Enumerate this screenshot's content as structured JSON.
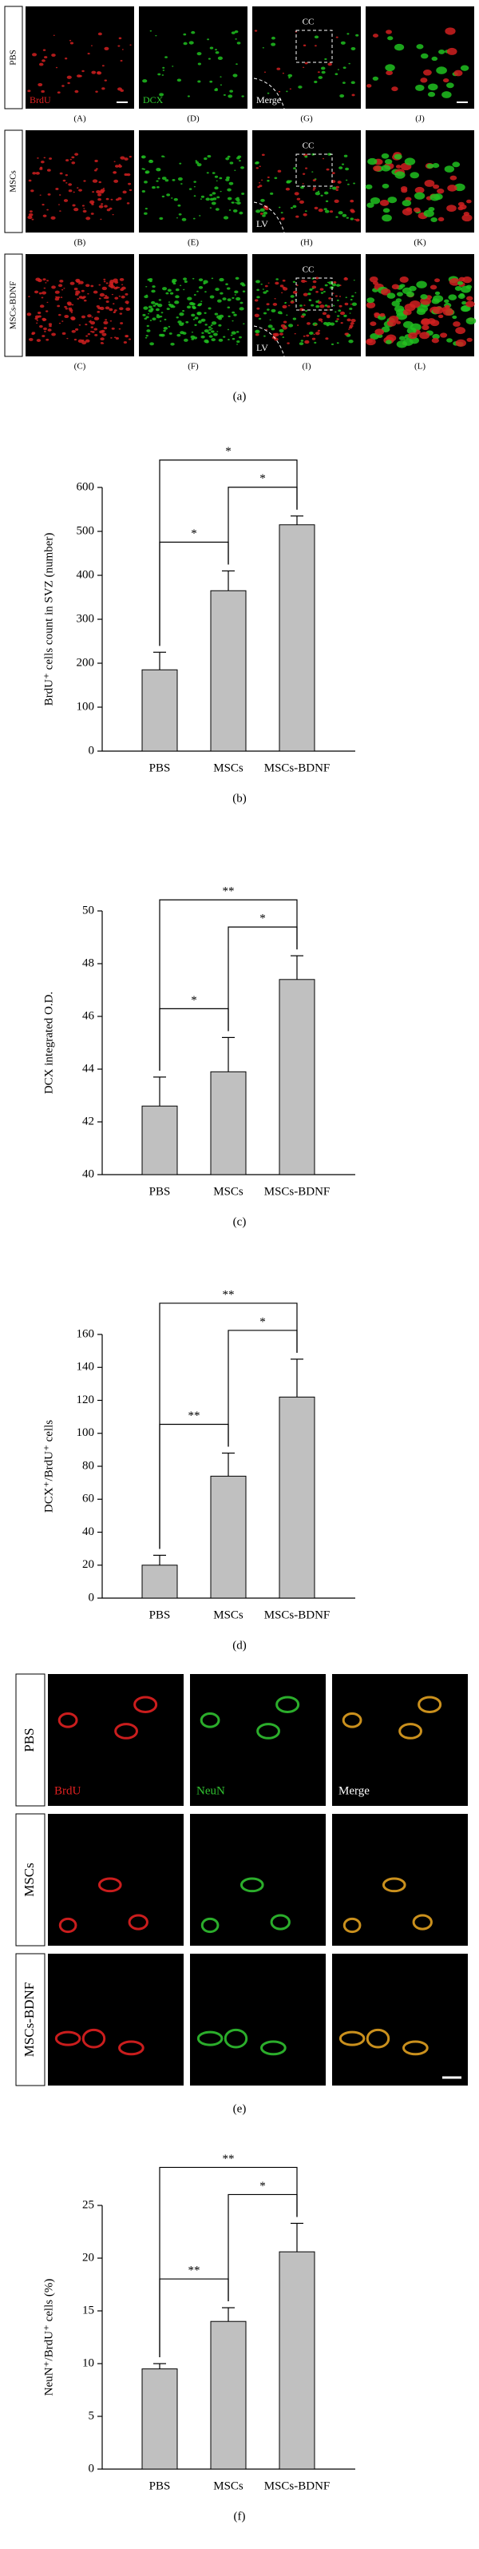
{
  "panel_a": {
    "row_labels": [
      "PBS",
      "MSCs",
      "MSCs-BDNF"
    ],
    "rows": [
      [
        {
          "label": "(A)",
          "corner_text": "BrdU",
          "text_color": "#e02020"
        },
        {
          "label": "(D)",
          "corner_text": "DCX",
          "text_color": "#30d030"
        },
        {
          "label": "(G)",
          "top_text": "CC",
          "corner_text": "Merge",
          "text_color": "#ffffff"
        },
        {
          "label": "(J)"
        }
      ],
      [
        {
          "label": "(B)"
        },
        {
          "label": "(E)"
        },
        {
          "label": "(H)",
          "top_text": "CC",
          "corner_text": "LV",
          "text_color": "#ffffff"
        },
        {
          "label": "(K)"
        }
      ],
      [
        {
          "label": "(C)"
        },
        {
          "label": "(F)"
        },
        {
          "label": "(I)",
          "top_text": "CC",
          "corner_text": "LV",
          "text_color": "#ffffff"
        },
        {
          "label": "(L)"
        }
      ]
    ],
    "caption": "(a)"
  },
  "chart_data": [
    {
      "type": "bar",
      "caption": "(b)",
      "y_label": "BrdU⁺ cells count in SVZ (number)",
      "categories": [
        "PBS",
        "MSCs",
        "MSCs-BDNF"
      ],
      "values": [
        185,
        365,
        515
      ],
      "errors": [
        40,
        45,
        20
      ],
      "color": "#c0c0c0",
      "ylim": [
        0,
        600
      ],
      "yticks": [
        0,
        100,
        200,
        300,
        400,
        500,
        600
      ],
      "annotations": [
        {
          "text": "*",
          "between": [
            "PBS",
            "MSCs-BDNF"
          ]
        },
        {
          "text": "*",
          "between": [
            "PBS",
            "MSCs"
          ]
        },
        {
          "text": "*",
          "between": [
            "MSCs",
            "MSCs-BDNF"
          ]
        }
      ]
    },
    {
      "type": "bar",
      "caption": "(c)",
      "y_label": "DCX integrated O.D.",
      "categories": [
        "PBS",
        "MSCs",
        "MSCs-BDNF"
      ],
      "values": [
        42.6,
        43.9,
        47.4
      ],
      "errors": [
        1.1,
        1.3,
        0.9
      ],
      "color": "#c0c0c0",
      "ylim": [
        40,
        50
      ],
      "yticks": [
        40,
        42,
        44,
        46,
        48,
        50
      ],
      "annotations": [
        {
          "text": "**",
          "between": [
            "PBS",
            "MSCs-BDNF"
          ]
        },
        {
          "text": "*",
          "between": [
            "PBS",
            "MSCs"
          ]
        },
        {
          "text": "*",
          "between": [
            "MSCs",
            "MSCs-BDNF"
          ]
        }
      ]
    },
    {
      "type": "bar",
      "caption": "(d)",
      "y_label": "DCX⁺/BrdU⁺ cells",
      "categories": [
        "PBS",
        "MSCs",
        "MSCs-BDNF"
      ],
      "values": [
        20,
        74,
        122
      ],
      "errors": [
        6,
        14,
        23
      ],
      "color": "#c0c0c0",
      "ylim": [
        0,
        160
      ],
      "yticks": [
        0,
        20,
        40,
        60,
        80,
        100,
        120,
        140,
        160
      ],
      "annotations": [
        {
          "text": "**",
          "between": [
            "PBS",
            "MSCs-BDNF"
          ]
        },
        {
          "text": "**",
          "between": [
            "PBS",
            "MSCs"
          ]
        },
        {
          "text": "*",
          "between": [
            "MSCs",
            "MSCs-BDNF"
          ]
        }
      ]
    },
    {
      "type": "bar",
      "caption": "(f)",
      "y_label": "NeuN⁺/BrdU⁺ cells (%)",
      "categories": [
        "PBS",
        "MSCs",
        "MSCs-BDNF"
      ],
      "values": [
        9.5,
        14,
        20.6
      ],
      "errors": [
        0.5,
        1.3,
        2.7
      ],
      "color": "#c0c0c0",
      "ylim": [
        0,
        25
      ],
      "yticks": [
        0,
        5,
        10,
        15,
        20,
        25
      ],
      "annotations": [
        {
          "text": "**",
          "between": [
            "PBS",
            "MSCs-BDNF"
          ]
        },
        {
          "text": "**",
          "between": [
            "PBS",
            "MSCs"
          ]
        },
        {
          "text": "*",
          "between": [
            "MSCs",
            "MSCs-BDNF"
          ]
        }
      ]
    }
  ],
  "panel_e": {
    "row_labels": [
      "PBS",
      "MSCs",
      "MSCs-BDNF"
    ],
    "channels": [
      {
        "name": "BrdU",
        "color": "#e02020"
      },
      {
        "name": "NeuN",
        "color": "#30c030"
      },
      {
        "name": "Merge",
        "color": "#ffffff"
      }
    ],
    "caption": "(e)"
  }
}
